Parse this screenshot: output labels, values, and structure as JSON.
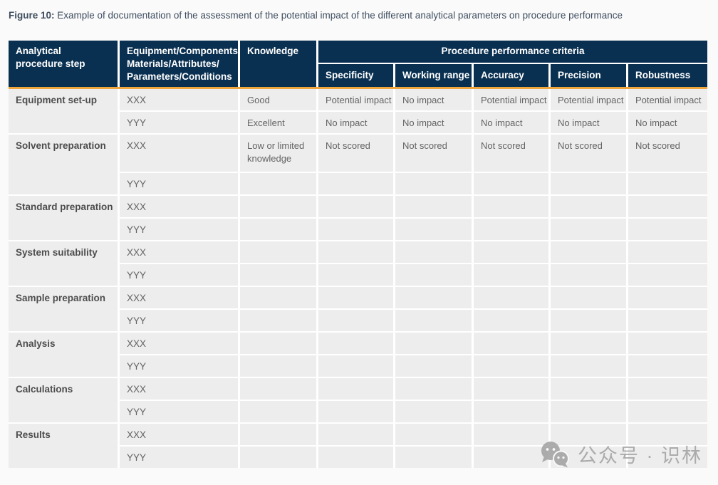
{
  "caption": {
    "label": "Figure 10:",
    "text": " Example of documentation of the assessment of the potential impact of the different analytical parameters on procedure performance"
  },
  "table": {
    "headers": {
      "col1_lines": [
        "Analytical",
        "procedure step"
      ],
      "col2_lines": [
        "Equipment/Components/",
        "Materials/Attributes/",
        "Parameters/Conditions"
      ],
      "col3": "Knowledge",
      "group": "Procedure performance criteria",
      "criteria": [
        "Specificity",
        "Working range",
        "Accuracy",
        "Precision",
        "Robustness"
      ]
    },
    "groups": [
      {
        "step": "Equipment set-up",
        "rows": [
          {
            "item": "XXX",
            "knowledge": "Good",
            "values": [
              "Potential impact",
              "No impact",
              "Potential impact",
              "Potential impact",
              "Potential impact"
            ]
          },
          {
            "item": "YYY",
            "knowledge": "Excellent",
            "values": [
              "No impact",
              "No impact",
              "No impact",
              "No impact",
              "No impact"
            ]
          }
        ]
      },
      {
        "step": "Solvent preparation",
        "rows": [
          {
            "item": "XXX",
            "knowledge": "Low or limited knowledge",
            "values": [
              "Not scored",
              "Not scored",
              "Not scored",
              "Not scored",
              "Not scored"
            ],
            "tall": true
          },
          {
            "item": "YYY",
            "knowledge": "",
            "values": [
              "",
              "",
              "",
              "",
              ""
            ]
          }
        ]
      },
      {
        "step": "Standard preparation",
        "rows": [
          {
            "item": "XXX",
            "knowledge": "",
            "values": [
              "",
              "",
              "",
              "",
              ""
            ]
          },
          {
            "item": "YYY",
            "knowledge": "",
            "values": [
              "",
              "",
              "",
              "",
              ""
            ]
          }
        ]
      },
      {
        "step": "System suitability",
        "rows": [
          {
            "item": "XXX",
            "knowledge": "",
            "values": [
              "",
              "",
              "",
              "",
              ""
            ]
          },
          {
            "item": "YYY",
            "knowledge": "",
            "values": [
              "",
              "",
              "",
              "",
              ""
            ]
          }
        ]
      },
      {
        "step": "Sample preparation",
        "rows": [
          {
            "item": "XXX",
            "knowledge": "",
            "values": [
              "",
              "",
              "",
              "",
              ""
            ]
          },
          {
            "item": "YYY",
            "knowledge": "",
            "values": [
              "",
              "",
              "",
              "",
              ""
            ]
          }
        ]
      },
      {
        "step": "Analysis",
        "rows": [
          {
            "item": "XXX",
            "knowledge": "",
            "values": [
              "",
              "",
              "",
              "",
              ""
            ]
          },
          {
            "item": "YYY",
            "knowledge": "",
            "values": [
              "",
              "",
              "",
              "",
              ""
            ]
          }
        ]
      },
      {
        "step": "Calculations",
        "rows": [
          {
            "item": "XXX",
            "knowledge": "",
            "values": [
              "",
              "",
              "",
              "",
              ""
            ]
          },
          {
            "item": "YYY",
            "knowledge": "",
            "values": [
              "",
              "",
              "",
              "",
              ""
            ]
          }
        ]
      },
      {
        "step": "Results",
        "rows": [
          {
            "item": "XXX",
            "knowledge": "",
            "values": [
              "",
              "",
              "",
              "",
              ""
            ]
          },
          {
            "item": "YYY",
            "knowledge": "",
            "values": [
              "",
              "",
              "",
              "",
              ""
            ]
          }
        ]
      }
    ]
  },
  "watermark": {
    "icon": "chat-bubbles-icon",
    "text": "公众号 · 识林"
  },
  "colors": {
    "header_bg": "#0a3051",
    "accent_line": "#efa63d",
    "cell_bg": "#ededed",
    "page_bg": "#fafafa",
    "caption_ink": "#3f4e60"
  }
}
